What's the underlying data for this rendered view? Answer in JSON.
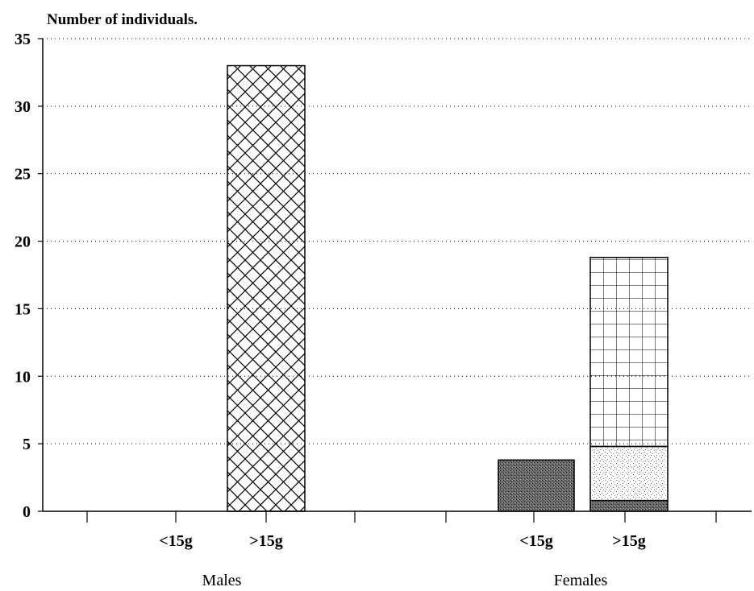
{
  "chart_data": {
    "type": "bar",
    "title": "",
    "ylabel": "Number of individuals.",
    "xlabel": "",
    "ylim": [
      0,
      35
    ],
    "yticks": [
      0,
      5,
      10,
      15,
      20,
      25,
      30,
      35
    ],
    "grid": true,
    "groups": [
      {
        "name": "Males",
        "bars": [
          {
            "label": "<15g",
            "segments": []
          },
          {
            "label": ">15g",
            "segments": [
              {
                "value": 33,
                "pattern": "crosshatch"
              }
            ]
          }
        ]
      },
      {
        "name": "Females",
        "bars": [
          {
            "label": "<15g",
            "segments": [
              {
                "value": 3.8,
                "pattern": "dark-stipple"
              }
            ]
          },
          {
            "label": ">15g",
            "segments": [
              {
                "value": 0.8,
                "pattern": "dark-stipple"
              },
              {
                "value": 4.0,
                "pattern": "light-stipple"
              },
              {
                "value": 14.0,
                "pattern": "grid"
              }
            ]
          }
        ]
      }
    ]
  }
}
